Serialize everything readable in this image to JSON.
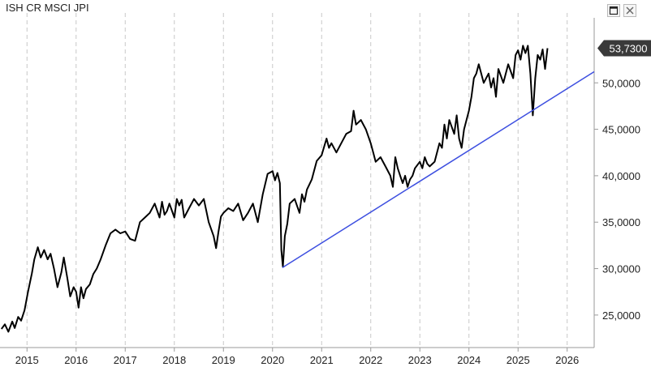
{
  "window": {
    "title": "ISH CR MSCI JPI",
    "maximize_icon": "maximize-icon",
    "close_icon": "close-icon"
  },
  "colors": {
    "price_line": "#000000",
    "trend_line": "#3d4fe0",
    "grid": "#c8c8c8",
    "axis": "#9a9a9a",
    "price_badge": "#3a3a3a"
  },
  "chart_data": {
    "type": "line",
    "title": "ISH CR MSCI JPI",
    "xlabel": "",
    "ylabel": "",
    "ylim": [
      21.5,
      57.0
    ],
    "xlim": [
      2014.45,
      2026.55
    ],
    "y_ticks": [
      25,
      30,
      35,
      40,
      45,
      50
    ],
    "y_tick_labels": [
      "25,0000",
      "30,0000",
      "35,0000",
      "40,0000",
      "45,0000",
      "50,0000"
    ],
    "x_ticks": [
      2015,
      2016,
      2017,
      2018,
      2019,
      2020,
      2021,
      2022,
      2023,
      2024,
      2025,
      2026
    ],
    "x_tick_labels": [
      "2015",
      "2016",
      "2017",
      "2018",
      "2019",
      "2020",
      "2021",
      "2022",
      "2023",
      "2024",
      "2025",
      "2026"
    ],
    "grid": "vertical dashed at year boundaries",
    "last_value_label": "53,7300",
    "series": [
      {
        "x": [
          2014.48,
          2014.55,
          2014.62,
          2014.7,
          2014.75,
          2014.82,
          2014.88,
          2014.95,
          2015.02,
          2015.1,
          2015.15,
          2015.22,
          2015.28,
          2015.35,
          2015.42,
          2015.48,
          2015.55,
          2015.62,
          2015.7,
          2015.75,
          2015.82,
          2015.88,
          2015.95,
          2016.0,
          2016.05,
          2016.1,
          2016.15,
          2016.2,
          2016.28,
          2016.35,
          2016.42,
          2016.5,
          2016.6,
          2016.7,
          2016.8,
          2016.9,
          2017.0,
          2017.1,
          2017.2,
          2017.3,
          2017.4,
          2017.5,
          2017.6,
          2017.7,
          2017.75,
          2017.8,
          2017.85,
          2017.9,
          2018.0,
          2018.05,
          2018.1,
          2018.15,
          2018.2,
          2018.3,
          2018.4,
          2018.5,
          2018.6,
          2018.7,
          2018.8,
          2018.85,
          2018.9,
          2018.95,
          2019.0,
          2019.1,
          2019.2,
          2019.3,
          2019.4,
          2019.5,
          2019.6,
          2019.7,
          2019.8,
          2019.9,
          2020.0,
          2020.05,
          2020.1,
          2020.15,
          2020.18,
          2020.21,
          2020.25,
          2020.3,
          2020.35,
          2020.45,
          2020.55,
          2020.6,
          2020.65,
          2020.7,
          2020.8,
          2020.9,
          2021.0,
          2021.1,
          2021.15,
          2021.2,
          2021.3,
          2021.4,
          2021.5,
          2021.6,
          2021.65,
          2021.7,
          2021.8,
          2021.9,
          2022.0,
          2022.05,
          2022.1,
          2022.2,
          2022.3,
          2022.4,
          2022.45,
          2022.5,
          2022.55,
          2022.6,
          2022.65,
          2022.7,
          2022.75,
          2022.8,
          2022.85,
          2022.9,
          2023.0,
          2023.05,
          2023.1,
          2023.15,
          2023.2,
          2023.3,
          2023.4,
          2023.45,
          2023.5,
          2023.55,
          2023.6,
          2023.7,
          2023.75,
          2023.8,
          2023.85,
          2023.9,
          2024.0,
          2024.05,
          2024.1,
          2024.15,
          2024.2,
          2024.3,
          2024.4,
          2024.45,
          2024.5,
          2024.55,
          2024.6,
          2024.7,
          2024.75,
          2024.8,
          2024.9,
          2024.95,
          2025.0,
          2025.05,
          2025.1,
          2025.15,
          2025.2,
          2025.25,
          2025.3,
          2025.35,
          2025.4,
          2025.45,
          2025.5,
          2025.55,
          2025.6
        ],
        "values": [
          23.5,
          24.0,
          23.2,
          24.3,
          23.6,
          24.8,
          24.4,
          25.5,
          27.5,
          29.5,
          31.0,
          32.3,
          31.2,
          32.0,
          31.0,
          31.6,
          30.0,
          28.0,
          29.6,
          31.2,
          29.0,
          27.0,
          28.0,
          27.5,
          25.8,
          28.0,
          26.8,
          27.8,
          28.3,
          29.4,
          30.0,
          31.0,
          32.5,
          33.8,
          34.2,
          33.8,
          34.0,
          33.2,
          33.0,
          35.0,
          35.5,
          36.0,
          37.0,
          35.5,
          37.2,
          35.8,
          36.2,
          37.0,
          35.5,
          37.5,
          36.8,
          37.4,
          35.5,
          36.5,
          37.5,
          36.8,
          37.5,
          35.0,
          33.5,
          32.2,
          34.0,
          35.6,
          36.0,
          36.5,
          36.2,
          37.0,
          35.2,
          36.0,
          37.0,
          35.0,
          38.0,
          40.2,
          40.5,
          39.5,
          40.3,
          39.2,
          32.0,
          30.2,
          33.5,
          34.8,
          37.0,
          37.5,
          36.0,
          38.0,
          37.2,
          38.5,
          39.6,
          41.6,
          42.2,
          44.0,
          43.0,
          43.5,
          42.5,
          43.5,
          44.5,
          44.8,
          47.0,
          45.5,
          46.0,
          45.0,
          43.5,
          42.5,
          41.5,
          42.0,
          41.0,
          40.0,
          38.8,
          42.0,
          40.8,
          40.0,
          39.2,
          40.0,
          38.8,
          39.6,
          40.0,
          40.8,
          41.5,
          40.8,
          42.0,
          41.3,
          41.0,
          41.5,
          43.5,
          43.0,
          45.5,
          44.0,
          46.0,
          44.5,
          46.5,
          44.0,
          43.0,
          45.0,
          47.0,
          48.5,
          50.5,
          51.0,
          52.0,
          50.0,
          51.0,
          49.5,
          50.5,
          48.5,
          51.5,
          50.0,
          51.0,
          52.0,
          50.5,
          53.0,
          53.5,
          52.5,
          54.0,
          53.2,
          54.0,
          51.0,
          46.5,
          50.5,
          53.0,
          52.5,
          53.6,
          51.5,
          53.73
        ]
      },
      {
        "x": [
          2020.2,
          2026.55
        ],
        "values": [
          30.1,
          51.2
        ]
      }
    ]
  }
}
